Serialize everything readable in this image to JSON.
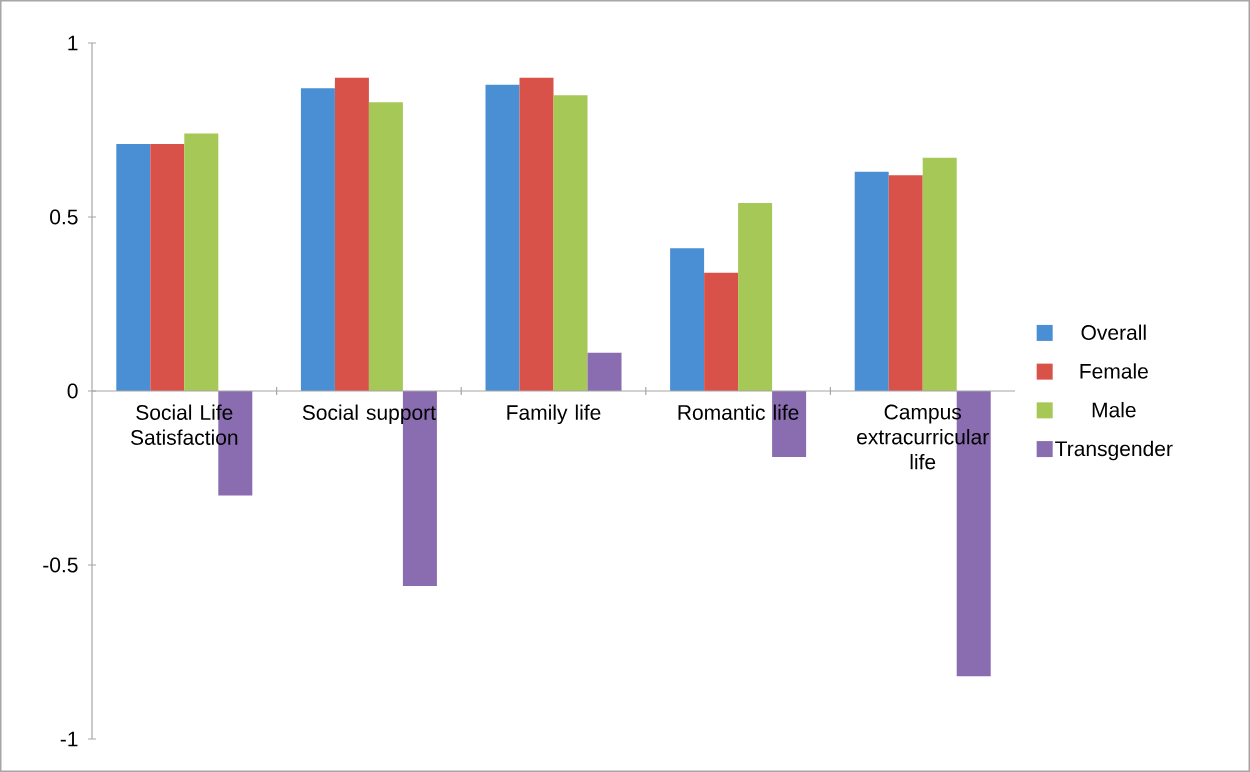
{
  "chart_data": {
    "type": "bar",
    "categories": [
      "Social Life Satisfaction",
      "Social support",
      "Family life",
      "Romantic life",
      "Campus extracurricular life"
    ],
    "series": [
      {
        "name": "Overall",
        "color": "#4a8fd4",
        "values": [
          0.71,
          0.87,
          0.88,
          0.41,
          0.63
        ]
      },
      {
        "name": "Female",
        "color": "#d8524a",
        "values": [
          0.71,
          0.9,
          0.9,
          0.34,
          0.62
        ]
      },
      {
        "name": "Male",
        "color": "#a6c856",
        "values": [
          0.74,
          0.83,
          0.85,
          0.54,
          0.67
        ]
      },
      {
        "name": "Transgender",
        "color": "#8a6cb0",
        "values": [
          -0.3,
          -0.56,
          0.11,
          -0.19,
          -0.82
        ]
      }
    ],
    "ylim": [
      -1,
      1
    ],
    "yticks": [
      -1,
      -0.5,
      0,
      0.5,
      1
    ],
    "grid": false,
    "legend": "right"
  }
}
